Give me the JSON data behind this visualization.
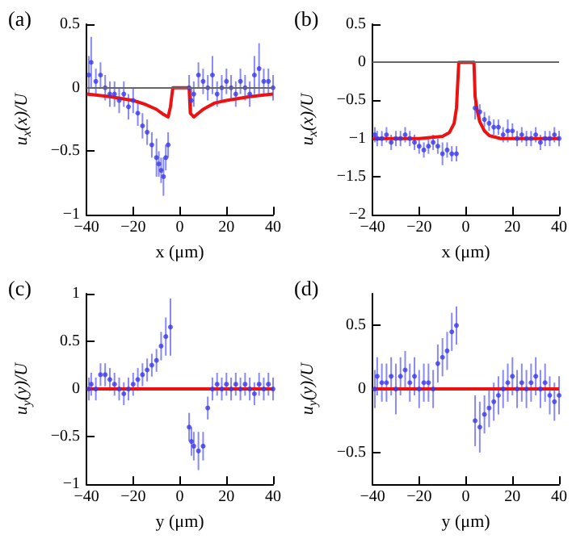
{
  "chart_data": [
    {
      "type": "scatter",
      "title": "(a)",
      "xlabel": "x (μm)",
      "ylabel": "u$_{x}$(x)/U",
      "xlim": [
        -40,
        40
      ],
      "xticks": [
        -40,
        -20,
        0,
        20,
        40
      ],
      "ylim": [
        -1,
        0.5
      ],
      "yticks": [
        -1,
        -0.5,
        0,
        0.5
      ],
      "ref_lines": [
        {
          "axis": "y",
          "value": 0,
          "color": "#666666"
        }
      ],
      "series": [
        {
          "marker": "circle",
          "color": "#3a3aee",
          "x": [
            -39,
            -38,
            -36,
            -34,
            -32,
            -30,
            -28,
            -26,
            -24,
            -22,
            -20,
            -18,
            -16,
            -14,
            -12,
            -10,
            -9,
            -8,
            -7,
            -6,
            -5,
            4,
            5,
            6,
            8,
            10,
            12,
            14,
            16,
            18,
            20,
            22,
            24,
            26,
            28,
            30,
            32,
            34,
            36,
            38,
            40
          ],
          "values": [
            0.1,
            0.2,
            0.05,
            0.1,
            0,
            -0.05,
            -0.05,
            -0.1,
            -0.05,
            -0.15,
            -0.1,
            -0.2,
            -0.3,
            -0.35,
            -0.45,
            -0.55,
            -0.6,
            -0.65,
            -0.7,
            -0.55,
            -0.45,
            0,
            -0.1,
            -0.05,
            0.1,
            0.05,
            0,
            0.1,
            -0.05,
            0,
            0.05,
            0,
            -0.05,
            0.05,
            0,
            -0.05,
            0.1,
            0.15,
            0.05,
            0.05,
            0
          ],
          "errors": [
            0.15,
            0.2,
            0.1,
            0.1,
            0.1,
            0.1,
            0.1,
            0.1,
            0.1,
            0.1,
            0.1,
            0.1,
            0.1,
            0.1,
            0.1,
            0.15,
            0.1,
            0.1,
            0.15,
            0.1,
            0.1,
            0.1,
            0.1,
            0.1,
            0.1,
            0.1,
            0.1,
            0.15,
            0.1,
            0.1,
            0.1,
            0.1,
            0.1,
            0.1,
            0.1,
            0.1,
            0.15,
            0.2,
            0.1,
            0.1,
            0.1
          ]
        },
        {
          "type": "line",
          "marker": "none",
          "color": "#ee1111",
          "x": [
            -40,
            -30,
            -20,
            -15,
            -10,
            -7,
            -5,
            -4,
            -3,
            3,
            4,
            4.5,
            6,
            10,
            15,
            20,
            30,
            40
          ],
          "values": [
            -0.05,
            -0.07,
            -0.1,
            -0.13,
            -0.17,
            -0.21,
            -0.23,
            -0.15,
            0,
            0,
            0,
            -0.2,
            -0.23,
            -0.17,
            -0.12,
            -0.1,
            -0.07,
            -0.05
          ]
        }
      ]
    },
    {
      "type": "scatter",
      "title": "(b)",
      "xlabel": "x (μm)",
      "ylabel": "u$_{x}$(x)/U",
      "xlim": [
        -40,
        40
      ],
      "xticks": [
        -40,
        -20,
        0,
        20,
        40
      ],
      "ylim": [
        -2,
        0.5
      ],
      "yticks": [
        -2,
        -1.5,
        -1,
        -0.5,
        0,
        0.5
      ],
      "ref_lines": [
        {
          "axis": "y",
          "value": 0,
          "color": "#666666"
        }
      ],
      "series": [
        {
          "marker": "circle",
          "color": "#3a3aee",
          "x": [
            -39,
            -38,
            -36,
            -34,
            -32,
            -30,
            -28,
            -26,
            -24,
            -22,
            -20,
            -18,
            -16,
            -14,
            -12,
            -10,
            -8,
            -6,
            -4,
            4,
            6,
            8,
            10,
            12,
            14,
            16,
            18,
            20,
            22,
            24,
            26,
            28,
            30,
            32,
            34,
            36,
            38,
            40
          ],
          "values": [
            -0.95,
            -1,
            -1,
            -0.95,
            -1.05,
            -1,
            -1,
            -0.95,
            -1,
            -1.05,
            -1.1,
            -1.15,
            -1.1,
            -1.05,
            -1.1,
            -1.2,
            -1.15,
            -1.2,
            -1.2,
            -0.6,
            -0.65,
            -0.75,
            -0.8,
            -0.85,
            -0.85,
            -0.95,
            -0.9,
            -0.9,
            -1,
            -0.95,
            -1,
            -1,
            -0.95,
            -1.05,
            -1,
            -1,
            -0.95,
            -1
          ],
          "errors": [
            0.1,
            0.1,
            0.1,
            0.1,
            0.1,
            0.1,
            0.1,
            0.1,
            0.1,
            0.1,
            0.1,
            0.1,
            0.1,
            0.1,
            0.1,
            0.15,
            0.1,
            0.1,
            0.1,
            0.15,
            0.1,
            0.1,
            0.1,
            0.1,
            0.1,
            0.1,
            0.15,
            0.1,
            0.1,
            0.1,
            0.1,
            0.1,
            0.1,
            0.1,
            0.1,
            0.1,
            0.1,
            0.1
          ]
        },
        {
          "type": "line",
          "marker": "none",
          "color": "#ee1111",
          "x": [
            -40,
            -20,
            -10,
            -7,
            -5,
            -4,
            -3,
            3,
            3.5,
            4,
            5,
            6,
            8,
            10,
            15,
            20,
            40
          ],
          "values": [
            -1,
            -1,
            -0.97,
            -0.92,
            -0.8,
            -0.6,
            0,
            0,
            0,
            -0.45,
            -0.65,
            -0.78,
            -0.9,
            -0.96,
            -1,
            -1,
            -1
          ]
        }
      ]
    },
    {
      "type": "scatter",
      "title": "(c)",
      "xlabel": "y (μm)",
      "ylabel": "u$_{y}$(y)/U",
      "xlim": [
        -40,
        40
      ],
      "xticks": [
        -40,
        -20,
        0,
        20,
        40
      ],
      "ylim": [
        -1,
        1
      ],
      "yticks": [
        -1,
        -0.5,
        0,
        0.5,
        1
      ],
      "series": [
        {
          "marker": "circle",
          "color": "#3a3aee",
          "x": [
            -39,
            -38,
            -36,
            -34,
            -32,
            -30,
            -28,
            -26,
            -24,
            -22,
            -20,
            -18,
            -16,
            -14,
            -12,
            -10,
            -8,
            -6,
            -4,
            4,
            5,
            6,
            8,
            10,
            12,
            14,
            16,
            18,
            20,
            22,
            24,
            26,
            28,
            30,
            32,
            34,
            36,
            38,
            40
          ],
          "values": [
            0,
            0.05,
            0,
            0.15,
            0.15,
            0.1,
            0.05,
            0,
            -0.05,
            0,
            0.05,
            0.1,
            0.15,
            0.2,
            0.25,
            0.3,
            0.45,
            0.55,
            0.65,
            -0.4,
            -0.55,
            -0.6,
            -0.65,
            -0.6,
            -0.2,
            0,
            0.05,
            0,
            0.05,
            0,
            0.05,
            0,
            0.05,
            0,
            -0.05,
            0.05,
            0,
            0.05,
            0
          ],
          "errors": [
            0.12,
            0.12,
            0.12,
            0.12,
            0.12,
            0.12,
            0.12,
            0.12,
            0.12,
            0.12,
            0.12,
            0.12,
            0.12,
            0.12,
            0.12,
            0.12,
            0.15,
            0.2,
            0.3,
            0.15,
            0.15,
            0.15,
            0.2,
            0.15,
            0.12,
            0.12,
            0.12,
            0.12,
            0.12,
            0.12,
            0.12,
            0.12,
            0.12,
            0.12,
            0.12,
            0.12,
            0.12,
            0.12,
            0.12
          ]
        },
        {
          "type": "line",
          "marker": "none",
          "color": "#ee1111",
          "x": [
            -40,
            40
          ],
          "values": [
            0,
            0
          ]
        }
      ]
    },
    {
      "type": "scatter",
      "title": "(d)",
      "xlabel": "y (μm)",
      "ylabel": "u$_{y}$(y)/U",
      "xlim": [
        -40,
        40
      ],
      "xticks": [
        -40,
        -20,
        0,
        20,
        40
      ],
      "ylim": [
        -0.75,
        0.75
      ],
      "yticks": [
        -0.5,
        0,
        0.5
      ],
      "series": [
        {
          "marker": "circle",
          "color": "#3a3aee",
          "x": [
            -39,
            -38,
            -36,
            -34,
            -32,
            -30,
            -28,
            -26,
            -24,
            -22,
            -20,
            -18,
            -16,
            -14,
            -12,
            -10,
            -8,
            -6,
            -4,
            4,
            6,
            8,
            10,
            12,
            14,
            16,
            18,
            20,
            22,
            24,
            26,
            28,
            30,
            32,
            34,
            36,
            38,
            40
          ],
          "values": [
            0,
            0.1,
            0.05,
            0.05,
            0.1,
            0,
            0.1,
            0.15,
            0.05,
            0.1,
            0,
            0.05,
            0.05,
            0,
            0.2,
            0.25,
            0.3,
            0.45,
            0.5,
            -0.25,
            -0.3,
            -0.2,
            -0.15,
            -0.1,
            -0.05,
            0,
            0.05,
            0.1,
            0,
            0.05,
            0,
            0.05,
            0.1,
            0,
            0.05,
            -0.05,
            -0.1,
            -0.05
          ],
          "errors": [
            0.15,
            0.15,
            0.15,
            0.15,
            0.15,
            0.2,
            0.15,
            0.15,
            0.15,
            0.15,
            0.15,
            0.15,
            0.15,
            0.15,
            0.15,
            0.15,
            0.15,
            0.15,
            0.15,
            0.2,
            0.2,
            0.15,
            0.15,
            0.15,
            0.15,
            0.15,
            0.15,
            0.15,
            0.15,
            0.15,
            0.15,
            0.15,
            0.15,
            0.15,
            0.15,
            0.15,
            0.15,
            0.15
          ]
        },
        {
          "type": "line",
          "marker": "none",
          "color": "#ee1111",
          "x": [
            -40,
            40
          ],
          "values": [
            0,
            0
          ]
        }
      ]
    }
  ]
}
